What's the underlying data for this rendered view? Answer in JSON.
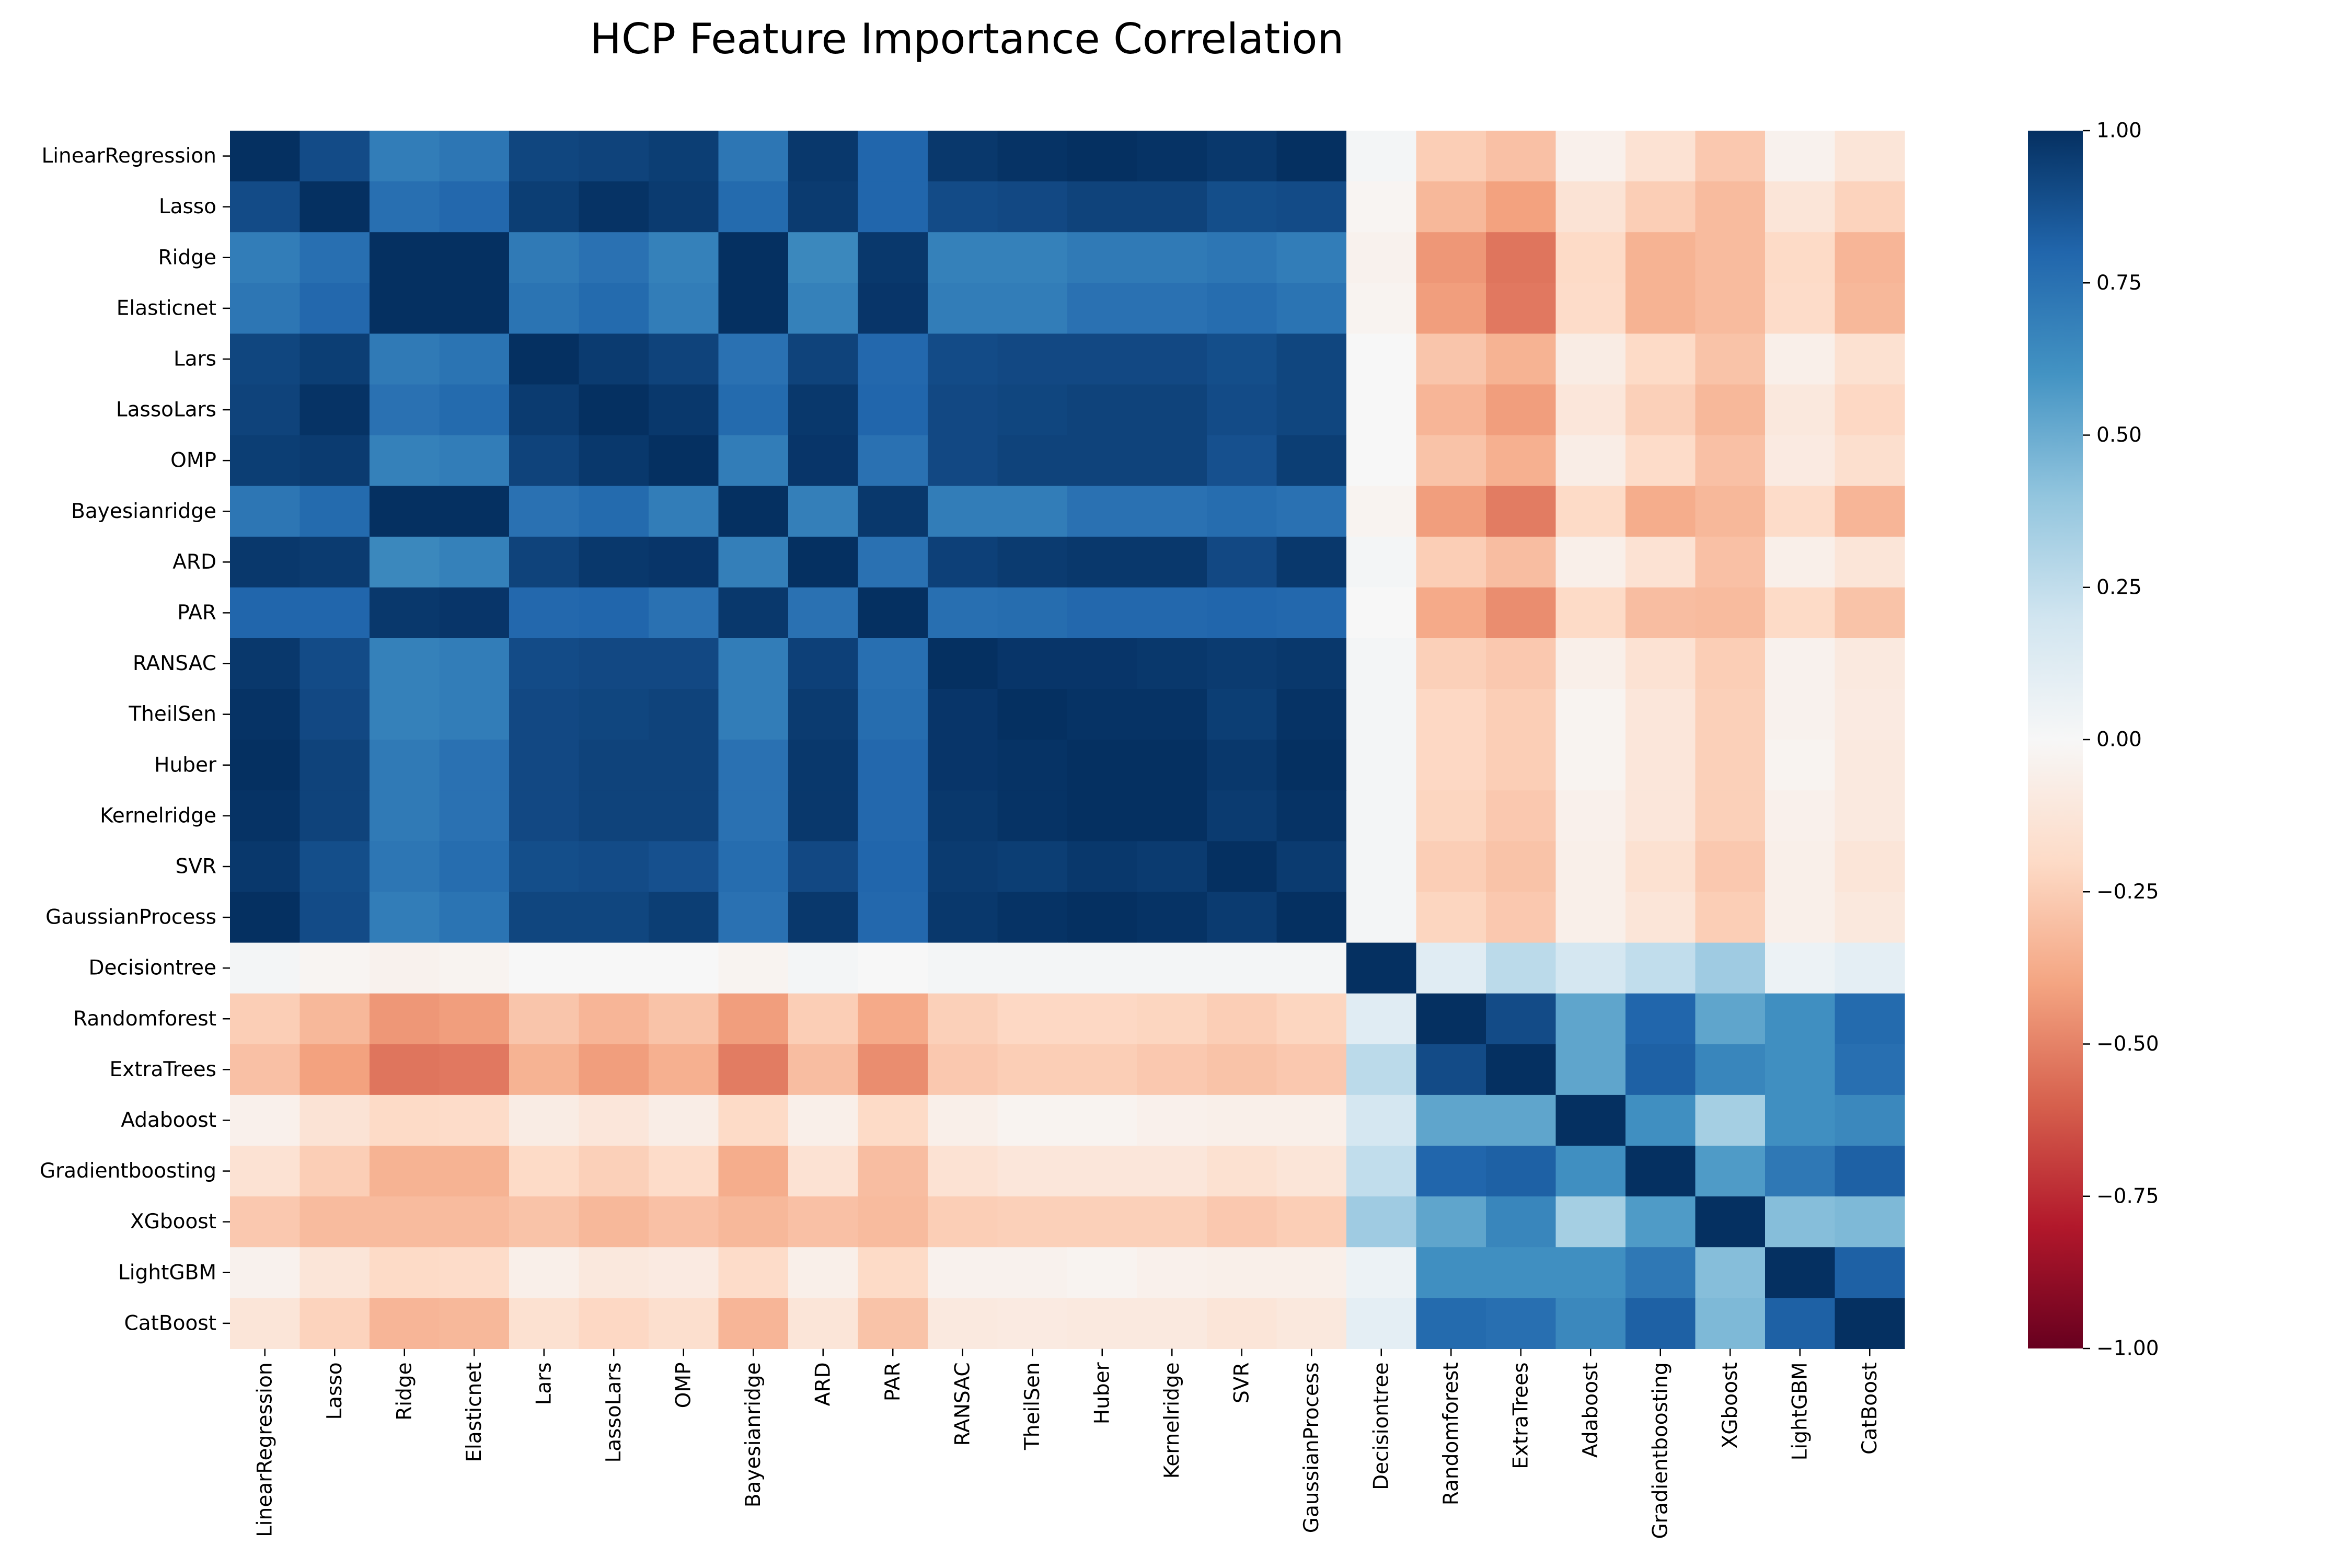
{
  "chart_data": {
    "type": "heatmap",
    "title": "HCP Feature Importance Correlation",
    "row_labels": [
      "LinearRegression",
      "Lasso",
      "Ridge",
      "Elasticnet",
      "Lars",
      "LassoLars",
      "OMP",
      "Bayesianridge",
      "ARD",
      "PAR",
      "RANSAC",
      "TheilSen",
      "Huber",
      "Kernelridge",
      "SVR",
      "GaussianProcess",
      "Decisiontree",
      "Randomforest",
      "ExtraTrees",
      "Adaboost",
      "Gradientboosting",
      "XGboost",
      "LightGBM",
      "CatBoost"
    ],
    "col_labels": [
      "LinearRegression",
      "Lasso",
      "Ridge",
      "Elasticnet",
      "Lars",
      "LassoLars",
      "OMP",
      "Bayesianridge",
      "ARD",
      "PAR",
      "RANSAC",
      "TheilSen",
      "Huber",
      "Kernelridge",
      "SVR",
      "GaussianProcess",
      "Decisiontree",
      "Randomforest",
      "ExtraTrees",
      "Adaboost",
      "Gradientboosting",
      "XGboost",
      "LightGBM",
      "CatBoost"
    ],
    "values": [
      [
        1.0,
        0.9,
        0.7,
        0.73,
        0.92,
        0.93,
        0.95,
        0.73,
        0.97,
        0.8,
        0.97,
        0.99,
        1.0,
        0.99,
        0.97,
        1.0,
        0.02,
        -0.25,
        -0.3,
        -0.05,
        -0.15,
        -0.27,
        -0.04,
        -0.13
      ],
      [
        0.9,
        1.0,
        0.76,
        0.79,
        0.95,
        0.99,
        0.96,
        0.78,
        0.96,
        0.8,
        0.9,
        0.91,
        0.93,
        0.93,
        0.89,
        0.9,
        -0.02,
        -0.33,
        -0.41,
        -0.14,
        -0.25,
        -0.32,
        -0.13,
        -0.23
      ],
      [
        0.7,
        0.76,
        1.0,
        1.0,
        0.71,
        0.75,
        0.68,
        1.0,
        0.65,
        0.97,
        0.68,
        0.68,
        0.71,
        0.71,
        0.73,
        0.7,
        -0.04,
        -0.44,
        -0.54,
        -0.2,
        -0.35,
        -0.32,
        -0.2,
        -0.34
      ],
      [
        0.73,
        0.79,
        1.0,
        1.0,
        0.74,
        0.78,
        0.7,
        1.0,
        0.68,
        0.98,
        0.7,
        0.7,
        0.75,
        0.75,
        0.77,
        0.74,
        -0.03,
        -0.42,
        -0.53,
        -0.19,
        -0.35,
        -0.32,
        -0.19,
        -0.33
      ],
      [
        0.92,
        0.95,
        0.71,
        0.74,
        1.0,
        0.96,
        0.93,
        0.75,
        0.93,
        0.79,
        0.9,
        0.91,
        0.91,
        0.91,
        0.89,
        0.92,
        0.0,
        -0.28,
        -0.35,
        -0.08,
        -0.2,
        -0.29,
        -0.06,
        -0.16
      ],
      [
        0.93,
        0.99,
        0.75,
        0.78,
        0.96,
        1.0,
        0.97,
        0.78,
        0.97,
        0.8,
        0.91,
        0.92,
        0.93,
        0.93,
        0.9,
        0.92,
        0.0,
        -0.34,
        -0.42,
        -0.12,
        -0.24,
        -0.33,
        -0.11,
        -0.21
      ],
      [
        0.95,
        0.96,
        0.68,
        0.7,
        0.93,
        0.97,
        1.0,
        0.7,
        0.98,
        0.75,
        0.91,
        0.93,
        0.93,
        0.93,
        0.88,
        0.95,
        0.0,
        -0.29,
        -0.36,
        -0.07,
        -0.19,
        -0.3,
        -0.09,
        -0.17
      ],
      [
        0.73,
        0.78,
        1.0,
        1.0,
        0.75,
        0.78,
        0.7,
        1.0,
        0.69,
        0.97,
        0.7,
        0.7,
        0.75,
        0.75,
        0.77,
        0.75,
        -0.03,
        -0.42,
        -0.52,
        -0.2,
        -0.37,
        -0.33,
        -0.19,
        -0.34
      ],
      [
        0.97,
        0.96,
        0.65,
        0.68,
        0.93,
        0.97,
        0.98,
        0.69,
        1.0,
        0.75,
        0.94,
        0.96,
        0.97,
        0.97,
        0.91,
        0.97,
        0.02,
        -0.25,
        -0.31,
        -0.06,
        -0.15,
        -0.3,
        -0.06,
        -0.13
      ],
      [
        0.8,
        0.8,
        0.97,
        0.98,
        0.79,
        0.8,
        0.75,
        0.97,
        0.75,
        1.0,
        0.76,
        0.77,
        0.79,
        0.79,
        0.8,
        0.79,
        0.0,
        -0.38,
        -0.47,
        -0.2,
        -0.31,
        -0.32,
        -0.2,
        -0.29
      ],
      [
        0.97,
        0.9,
        0.68,
        0.7,
        0.9,
        0.91,
        0.91,
        0.7,
        0.94,
        0.76,
        1.0,
        0.98,
        0.98,
        0.97,
        0.96,
        0.97,
        0.02,
        -0.24,
        -0.27,
        -0.06,
        -0.15,
        -0.25,
        -0.04,
        -0.1
      ],
      [
        0.99,
        0.91,
        0.68,
        0.7,
        0.91,
        0.92,
        0.93,
        0.7,
        0.96,
        0.77,
        0.98,
        1.0,
        0.99,
        0.99,
        0.95,
        0.99,
        0.02,
        -0.21,
        -0.25,
        -0.03,
        -0.12,
        -0.24,
        -0.04,
        -0.09
      ],
      [
        1.0,
        0.93,
        0.71,
        0.75,
        0.91,
        0.93,
        0.93,
        0.75,
        0.97,
        0.79,
        0.98,
        0.99,
        1.0,
        1.0,
        0.97,
        1.0,
        0.02,
        -0.21,
        -0.25,
        -0.03,
        -0.12,
        -0.24,
        -0.03,
        -0.1
      ],
      [
        0.99,
        0.93,
        0.71,
        0.75,
        0.91,
        0.93,
        0.93,
        0.75,
        0.97,
        0.79,
        0.97,
        0.99,
        1.0,
        1.0,
        0.96,
        0.99,
        0.02,
        -0.22,
        -0.27,
        -0.05,
        -0.12,
        -0.24,
        -0.05,
        -0.1
      ],
      [
        0.97,
        0.89,
        0.73,
        0.77,
        0.89,
        0.9,
        0.88,
        0.77,
        0.91,
        0.8,
        0.96,
        0.95,
        0.97,
        0.96,
        1.0,
        0.96,
        0.02,
        -0.25,
        -0.29,
        -0.06,
        -0.16,
        -0.27,
        -0.06,
        -0.13
      ],
      [
        1.0,
        0.9,
        0.7,
        0.74,
        0.92,
        0.92,
        0.95,
        0.75,
        0.97,
        0.79,
        0.97,
        0.99,
        1.0,
        0.99,
        0.96,
        1.0,
        0.02,
        -0.22,
        -0.27,
        -0.06,
        -0.13,
        -0.25,
        -0.06,
        -0.11
      ],
      [
        0.02,
        -0.02,
        -0.04,
        -0.03,
        0.0,
        0.0,
        0.0,
        -0.03,
        0.02,
        0.0,
        0.02,
        0.02,
        0.02,
        0.02,
        0.02,
        0.02,
        1.0,
        0.12,
        0.27,
        0.18,
        0.25,
        0.36,
        0.06,
        0.1
      ],
      [
        -0.25,
        -0.33,
        -0.44,
        -0.42,
        -0.28,
        -0.34,
        -0.29,
        -0.42,
        -0.25,
        -0.38,
        -0.24,
        -0.21,
        -0.21,
        -0.22,
        -0.25,
        -0.22,
        0.12,
        1.0,
        0.9,
        0.53,
        0.8,
        0.53,
        0.62,
        0.78
      ],
      [
        -0.3,
        -0.41,
        -0.54,
        -0.53,
        -0.35,
        -0.42,
        -0.36,
        -0.52,
        -0.31,
        -0.47,
        -0.27,
        -0.25,
        -0.25,
        -0.27,
        -0.29,
        -0.27,
        0.27,
        0.9,
        1.0,
        0.53,
        0.82,
        0.66,
        0.62,
        0.76
      ],
      [
        -0.05,
        -0.14,
        -0.2,
        -0.19,
        -0.08,
        -0.12,
        -0.07,
        -0.2,
        -0.06,
        -0.2,
        -0.06,
        -0.03,
        -0.03,
        -0.05,
        -0.06,
        -0.06,
        0.18,
        0.53,
        0.53,
        1.0,
        0.62,
        0.34,
        0.62,
        0.65
      ],
      [
        -0.15,
        -0.25,
        -0.35,
        -0.35,
        -0.2,
        -0.24,
        -0.19,
        -0.37,
        -0.15,
        -0.31,
        -0.15,
        -0.12,
        -0.12,
        -0.12,
        -0.16,
        -0.13,
        0.25,
        0.8,
        0.82,
        0.62,
        1.0,
        0.57,
        0.72,
        0.82
      ],
      [
        -0.27,
        -0.32,
        -0.32,
        -0.32,
        -0.29,
        -0.33,
        -0.3,
        -0.33,
        -0.3,
        -0.32,
        -0.25,
        -0.24,
        -0.24,
        -0.24,
        -0.27,
        -0.25,
        0.36,
        0.53,
        0.66,
        0.34,
        0.57,
        1.0,
        0.43,
        0.45
      ],
      [
        -0.04,
        -0.13,
        -0.2,
        -0.19,
        -0.06,
        -0.11,
        -0.09,
        -0.19,
        -0.06,
        -0.2,
        -0.04,
        -0.04,
        -0.03,
        -0.05,
        -0.06,
        -0.06,
        0.06,
        0.62,
        0.62,
        0.62,
        0.72,
        0.43,
        1.0,
        0.82
      ],
      [
        -0.13,
        -0.23,
        -0.34,
        -0.33,
        -0.16,
        -0.21,
        -0.17,
        -0.34,
        -0.13,
        -0.29,
        -0.1,
        -0.09,
        -0.1,
        -0.1,
        -0.13,
        -0.11,
        0.1,
        0.78,
        0.76,
        0.65,
        0.82,
        0.45,
        0.82,
        1.0
      ]
    ],
    "colorbar": {
      "colormap": "RdBu_r-like (red = -1, white = 0, blue = 1)",
      "range": [
        -1,
        1
      ],
      "ticks": [
        1.0,
        0.75,
        0.5,
        0.25,
        0.0,
        -0.25,
        -0.5,
        -0.75,
        -1.0
      ],
      "tick_labels": [
        "1.00",
        "0.75",
        "0.50",
        "0.25",
        "0.00",
        "−0.25",
        "−0.50",
        "−0.75",
        "−1.00"
      ]
    },
    "grid": false,
    "legend": "colorbar-right"
  }
}
